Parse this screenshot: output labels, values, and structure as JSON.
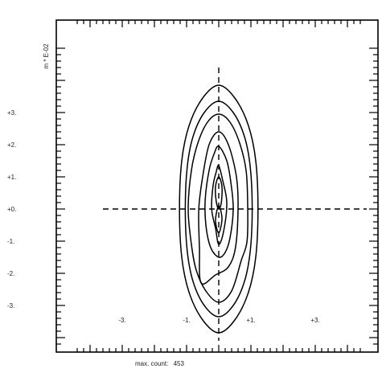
{
  "chart_data": {
    "type": "contour",
    "title": "",
    "xlabel": "",
    "ylabel": "",
    "y_unit_label": "m * E-02",
    "footer_label": "max. count:",
    "max_count": 453,
    "xlim": [
      -4.5,
      4.5
    ],
    "ylim": [
      -5.0,
      5.0
    ],
    "x_tick_labels": [
      {
        "value": -3,
        "label": "-3."
      },
      {
        "value": -1,
        "label": "-1."
      },
      {
        "value": 1,
        "label": "+1."
      },
      {
        "value": 3,
        "label": "+3."
      }
    ],
    "y_tick_labels": [
      {
        "value": 3,
        "label": "+3."
      },
      {
        "value": 2,
        "label": "+2."
      },
      {
        "value": 1,
        "label": "+1."
      },
      {
        "value": 0,
        "label": "+0."
      },
      {
        "value": -1,
        "label": "-1."
      },
      {
        "value": -2,
        "label": "-2."
      },
      {
        "value": -3,
        "label": "-3."
      }
    ],
    "reference_lines": {
      "horizontal": 0,
      "vertical": 0,
      "style": "dashed"
    },
    "contours": [
      {
        "level": 1,
        "points": [
          [
            0.0,
            3.85
          ],
          [
            0.5,
            3.45
          ],
          [
            0.92,
            2.6
          ],
          [
            1.15,
            1.5
          ],
          [
            1.22,
            0.0
          ],
          [
            1.15,
            -1.5
          ],
          [
            0.92,
            -2.6
          ],
          [
            0.5,
            -3.45
          ],
          [
            0.0,
            -3.85
          ],
          [
            -0.5,
            -3.45
          ],
          [
            -0.92,
            -2.6
          ],
          [
            -1.15,
            -1.5
          ],
          [
            -1.22,
            0.0
          ],
          [
            -1.15,
            1.5
          ],
          [
            -0.92,
            2.6
          ],
          [
            -0.5,
            3.45
          ]
        ]
      },
      {
        "level": 2,
        "points": [
          [
            0.0,
            3.35
          ],
          [
            0.45,
            3.0
          ],
          [
            0.8,
            2.25
          ],
          [
            0.98,
            1.3
          ],
          [
            1.04,
            0.0
          ],
          [
            0.98,
            -1.3
          ],
          [
            0.8,
            -2.25
          ],
          [
            0.45,
            -3.0
          ],
          [
            0.0,
            -3.35
          ],
          [
            -0.45,
            -3.0
          ],
          [
            -0.8,
            -2.25
          ],
          [
            -0.98,
            -1.3
          ],
          [
            -1.04,
            0.0
          ],
          [
            -0.98,
            1.3
          ],
          [
            -0.8,
            2.25
          ],
          [
            -0.45,
            3.0
          ]
        ]
      },
      {
        "level": 3,
        "points": [
          [
            0.0,
            2.95
          ],
          [
            0.35,
            2.7
          ],
          [
            0.65,
            2.05
          ],
          [
            0.85,
            1.2
          ],
          [
            0.9,
            0.1
          ],
          [
            0.88,
            -1.0
          ],
          [
            0.7,
            -1.6
          ],
          [
            0.4,
            -2.55
          ],
          [
            0.0,
            -2.9
          ],
          [
            -0.4,
            -2.55
          ],
          [
            -0.7,
            -1.9
          ],
          [
            -0.85,
            -1.1
          ],
          [
            -0.95,
            0.0
          ],
          [
            -0.85,
            1.2
          ],
          [
            -0.65,
            2.05
          ],
          [
            -0.35,
            2.7
          ]
        ]
      },
      {
        "level": 4,
        "points": [
          [
            0.0,
            2.4
          ],
          [
            0.3,
            2.0
          ],
          [
            0.55,
            1.0
          ],
          [
            0.6,
            0.0
          ],
          [
            0.52,
            -1.2
          ],
          [
            0.3,
            -1.8
          ],
          [
            -0.1,
            -2.05
          ],
          [
            -0.55,
            -2.3
          ],
          [
            -0.6,
            -1.2
          ],
          [
            -0.62,
            0.0
          ],
          [
            -0.5,
            1.0
          ],
          [
            -0.3,
            2.0
          ]
        ]
      },
      {
        "level": 5,
        "points": [
          [
            0.0,
            1.95
          ],
          [
            0.25,
            1.5
          ],
          [
            0.38,
            0.8
          ],
          [
            0.45,
            0.0
          ],
          [
            0.35,
            -0.9
          ],
          [
            0.2,
            -1.35
          ],
          [
            0.0,
            -1.5
          ],
          [
            -0.25,
            -1.2
          ],
          [
            -0.4,
            -0.5
          ],
          [
            -0.42,
            0.3
          ],
          [
            -0.3,
            1.2
          ],
          [
            -0.15,
            1.7
          ]
        ]
      },
      {
        "level": 6,
        "points": [
          [
            0.0,
            1.35
          ],
          [
            0.12,
            0.9
          ],
          [
            0.25,
            0.2
          ],
          [
            0.15,
            -0.7
          ],
          [
            0.0,
            -1.1
          ],
          [
            -0.1,
            -0.6
          ],
          [
            -0.22,
            0.0
          ],
          [
            -0.18,
            0.7
          ],
          [
            -0.08,
            1.15
          ]
        ]
      },
      {
        "level": 7,
        "points": [
          [
            0.0,
            1.0
          ],
          [
            0.1,
            0.7
          ],
          [
            0.08,
            0.2
          ],
          [
            0.0,
            0.0
          ],
          [
            -0.08,
            0.25
          ],
          [
            -0.1,
            0.7
          ]
        ]
      },
      {
        "level": 8,
        "points": [
          [
            0.0,
            0.1
          ],
          [
            0.1,
            -0.3
          ],
          [
            0.0,
            -0.75
          ],
          [
            -0.1,
            -0.35
          ]
        ]
      }
    ]
  }
}
